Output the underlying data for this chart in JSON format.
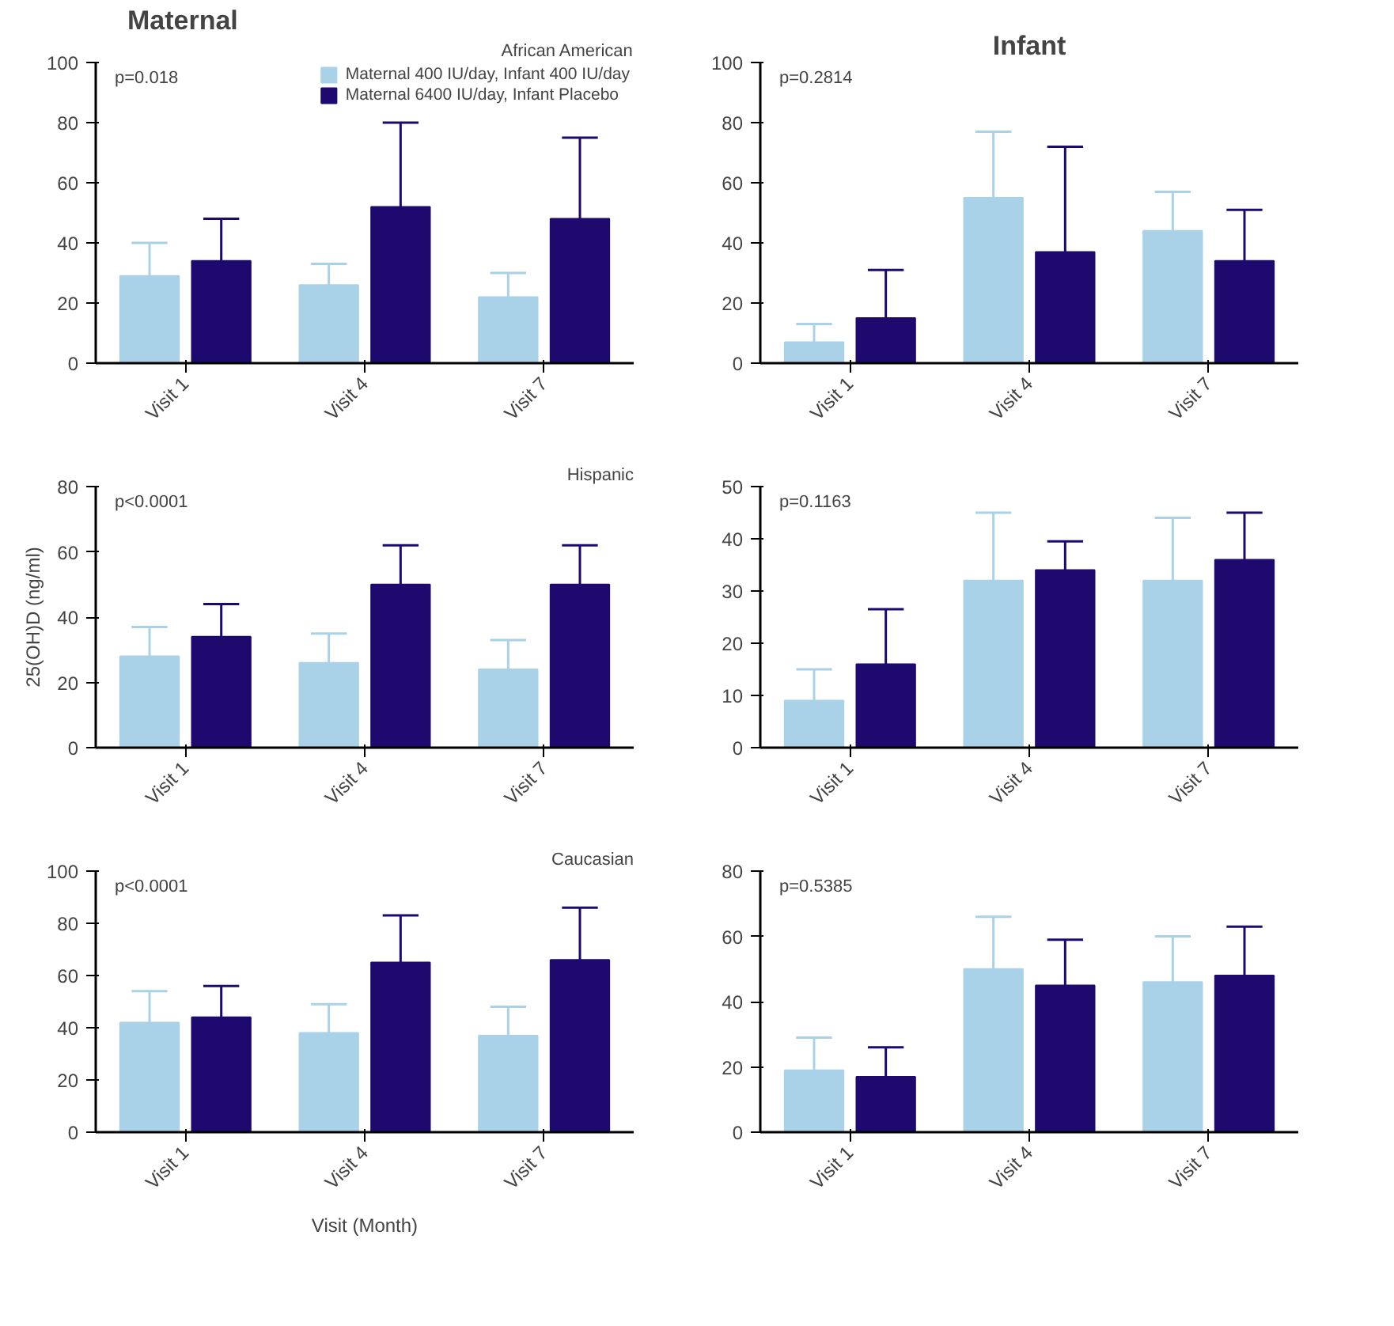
{
  "chart_data": [
    {
      "type": "bar",
      "title": "Maternal",
      "subtitle": "African American",
      "categories": [
        "Visit 1",
        "Visit 4",
        "Visit 7"
      ],
      "ylim": [
        0,
        100
      ],
      "yticks": [
        0,
        20,
        40,
        60,
        80,
        100
      ],
      "grid": false,
      "legend": "top right",
      "annotations": [
        "p=0.018"
      ],
      "series": [
        {
          "name": "Maternal 400 IU/day, Infant 400 IU/day",
          "color": "#a9d2e8",
          "values": [
            29,
            26,
            22
          ],
          "errors": [
            11,
            7,
            8
          ]
        },
        {
          "name": "Maternal 6400 IU/day, Infant Placebo",
          "color": "#1e0a6e",
          "values": [
            34,
            52,
            48
          ],
          "errors": [
            14,
            28,
            27
          ]
        }
      ]
    },
    {
      "type": "bar",
      "title": "Infant",
      "categories": [
        "Visit 1",
        "Visit 4",
        "Visit 7"
      ],
      "ylim": [
        0,
        100
      ],
      "yticks": [
        0,
        20,
        40,
        60,
        80,
        100
      ],
      "grid": false,
      "annotations": [
        "p=0.2814"
      ],
      "series": [
        {
          "color": "#a9d2e8",
          "values": [
            7,
            55,
            44
          ],
          "errors": [
            6,
            22,
            13
          ]
        },
        {
          "color": "#1e0a6e",
          "values": [
            15,
            37,
            34
          ],
          "errors": [
            16,
            35,
            17
          ]
        }
      ]
    },
    {
      "type": "bar",
      "subtitle": "Hispanic",
      "ylabel": "25(OH)D (ng/ml)",
      "categories": [
        "Visit 1",
        "Visit 4",
        "Visit 7"
      ],
      "ylim": [
        0,
        80
      ],
      "yticks": [
        0,
        20,
        40,
        60,
        80
      ],
      "grid": false,
      "annotations": [
        "p<0.0001"
      ],
      "series": [
        {
          "color": "#a9d2e8",
          "values": [
            28,
            26,
            24
          ],
          "errors": [
            9,
            9,
            9
          ]
        },
        {
          "color": "#1e0a6e",
          "values": [
            34,
            50,
            50
          ],
          "errors": [
            10,
            12,
            12
          ]
        }
      ]
    },
    {
      "type": "bar",
      "categories": [
        "Visit 1",
        "Visit 4",
        "Visit 7"
      ],
      "ylim": [
        0,
        50
      ],
      "yticks": [
        0,
        10,
        20,
        30,
        40,
        50
      ],
      "grid": false,
      "annotations": [
        "p=0.1163"
      ],
      "series": [
        {
          "color": "#a9d2e8",
          "values": [
            9,
            32,
            32
          ],
          "errors": [
            6,
            13,
            12
          ]
        },
        {
          "color": "#1e0a6e",
          "values": [
            16,
            34,
            36
          ],
          "errors": [
            10.5,
            5.5,
            9
          ]
        }
      ]
    },
    {
      "type": "bar",
      "subtitle": "Caucasian",
      "xlabel": "Visit (Month)",
      "categories": [
        "Visit 1",
        "Visit 4",
        "Visit 7"
      ],
      "ylim": [
        0,
        100
      ],
      "yticks": [
        0,
        20,
        40,
        60,
        80,
        100
      ],
      "grid": false,
      "annotations": [
        "p<0.0001"
      ],
      "series": [
        {
          "color": "#a9d2e8",
          "values": [
            42,
            38,
            37
          ],
          "errors": [
            12,
            11,
            11
          ]
        },
        {
          "color": "#1e0a6e",
          "values": [
            44,
            65,
            66
          ],
          "errors": [
            12,
            18,
            20
          ]
        }
      ]
    },
    {
      "type": "bar",
      "categories": [
        "Visit 1",
        "Visit 4",
        "Visit 7"
      ],
      "ylim": [
        0,
        80
      ],
      "yticks": [
        0,
        20,
        40,
        60,
        80
      ],
      "grid": false,
      "annotations": [
        "p=0.5385"
      ],
      "series": [
        {
          "color": "#a9d2e8",
          "values": [
            19,
            50,
            46
          ],
          "errors": [
            10,
            16,
            14
          ]
        },
        {
          "color": "#1e0a6e",
          "values": [
            17,
            45,
            48
          ],
          "errors": [
            9,
            14,
            15
          ]
        }
      ]
    }
  ]
}
